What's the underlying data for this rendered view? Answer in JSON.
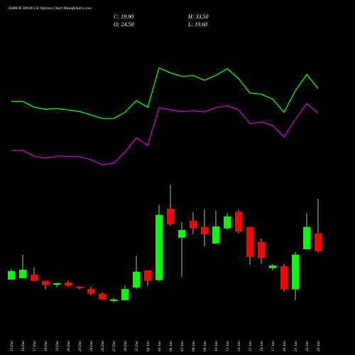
{
  "chart_data": {
    "type": "candlestick",
    "title": "DABUR 500.00 CE Options Chart MunafaSutra.com",
    "info": [
      "C: 19.90",
      "H: 33.50",
      "O: 24.50",
      "L: 19.60"
    ],
    "categories": [
      "13 Dec",
      "16 Dec",
      "17 Dec",
      "18 Dec",
      "19 Dec",
      "20 Dec",
      "23 Dec",
      "24 Dec",
      "26 Dec",
      "27 Dec",
      "30 Dec",
      "31 Dec",
      "02 Jan",
      "03 Jan",
      "06 Jan",
      "07 Jan",
      "08 Jan",
      "09 Jan",
      "10 Jan",
      "13 Jan",
      "14 Jan",
      "15 Jan",
      "16 Jan",
      "17 Jan",
      "20 Jan",
      "21 Jan",
      "22 Jan",
      "23 Jan"
    ],
    "open": [
      12.54,
      12.9,
      13.8,
      12.2,
      11.2,
      11.8,
      10.7,
      10.1,
      8.9,
      7.0,
      7.2,
      10.5,
      14.9,
      12.4,
      30.9,
      23.4,
      27.8,
      26.2,
      21.9,
      25.8,
      30.1,
      26.2,
      22.3,
      15.5,
      16.0,
      10.0,
      20.4,
      24.5
    ],
    "high": [
      15.3,
      19.0,
      15.7,
      12.2,
      11.6,
      12.2,
      10.9,
      10.7,
      9.2,
      7.8,
      11.0,
      18.8,
      14.9,
      31.9,
      37.2,
      27.4,
      30.0,
      30.8,
      30.4,
      29.8,
      30.6,
      26.2,
      23.2,
      16.6,
      16.6,
      19.7,
      29.8,
      33.5
    ],
    "low": [
      12.36,
      12.9,
      12.0,
      9.97,
      10.5,
      10.7,
      10.0,
      8.5,
      7.2,
      6.6,
      7.2,
      10.1,
      10.9,
      12.0,
      26.5,
      13.3,
      24.3,
      21.2,
      21.7,
      25.4,
      24.5,
      16.4,
      16.6,
      14.9,
      9.4,
      7.2,
      20.3,
      19.6
    ],
    "close": [
      14.75,
      15.1,
      12.2,
      11.1,
      11.6,
      10.9,
      10.3,
      8.9,
      7.4,
      7.4,
      10.1,
      14.6,
      12.2,
      29.3,
      26.9,
      25.4,
      25.8,
      24.3,
      26.3,
      28.9,
      25.0,
      18.4,
      18.1,
      16.2,
      10.0,
      19.0,
      26.2,
      19.9
    ],
    "up_color": "#00ff00",
    "down_color": "#ff0000",
    "lines": [
      {
        "color": "#00ff00",
        "values": [
          58.7,
          58.7,
          57.2,
          56.7,
          56.9,
          56.5,
          56.1,
          55.2,
          54.3,
          54.3,
          55.9,
          58.9,
          57.2,
          67.4,
          66.1,
          65.2,
          65.4,
          64.2,
          65.5,
          67.2,
          64.6,
          60.9,
          60.6,
          59.3,
          55.9,
          61.5,
          65.7,
          62.0
        ]
      },
      {
        "color": "#cc00cc",
        "values": [
          46.0,
          46.0,
          44.5,
          44.0,
          44.5,
          44.5,
          44.4,
          43.6,
          42.3,
          42.7,
          45.6,
          49.3,
          47.3,
          57.1,
          56.5,
          56.1,
          56.3,
          56.0,
          57.1,
          57.6,
          56.5,
          53.0,
          53.4,
          52.5,
          49.5,
          54.1,
          58.2,
          55.6
        ]
      }
    ],
    "ylim": [
      -7,
      85
    ]
  }
}
